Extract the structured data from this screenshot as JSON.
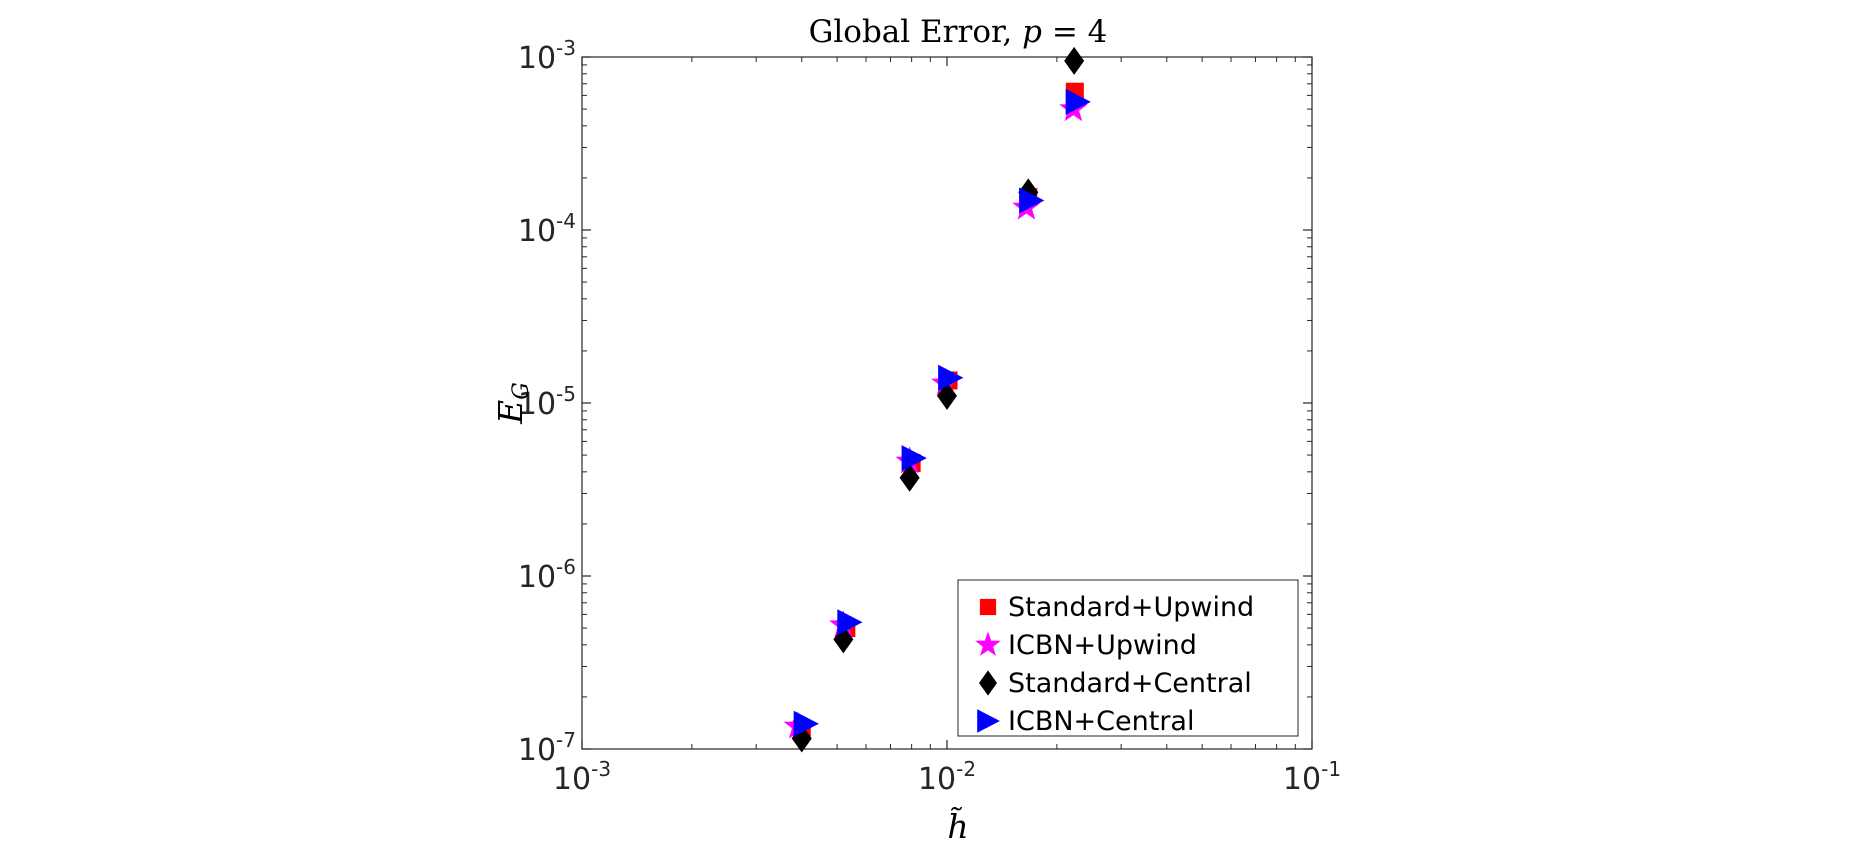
{
  "chart_data": {
    "type": "scatter",
    "title": "Global Error, p = 4",
    "title_parts": {
      "text": "Global Error, ",
      "var": "p",
      "rest": " = 4"
    },
    "xlabel": "h̃",
    "ylabel": {
      "base": "E",
      "sub": "G"
    },
    "x_scale": "log",
    "y_scale": "log",
    "xlim": [
      0.001,
      0.1
    ],
    "ylim": [
      1e-07,
      0.001
    ],
    "x_ticks": [
      {
        "value": 0.001,
        "base": "10",
        "exp": "-3"
      },
      {
        "value": 0.01,
        "base": "10",
        "exp": "-2"
      },
      {
        "value": 0.1,
        "base": "10",
        "exp": "-1"
      }
    ],
    "y_ticks": [
      {
        "value": 1e-07,
        "base": "10",
        "exp": "-7"
      },
      {
        "value": 1e-06,
        "base": "10",
        "exp": "-6"
      },
      {
        "value": 1e-05,
        "base": "10",
        "exp": "-5"
      },
      {
        "value": 0.0001,
        "base": "10",
        "exp": "-4"
      },
      {
        "value": 0.001,
        "base": "10",
        "exp": "-3"
      }
    ],
    "grid": false,
    "legend_position": "bottom-right",
    "series": [
      {
        "name": "Standard+Upwind",
        "marker": "square",
        "color": "#ff0000",
        "points": [
          [
            0.004,
            1.3e-07
          ],
          [
            0.0053,
            5e-07
          ],
          [
            0.008,
            4.5e-06
          ],
          [
            0.0101,
            1.35e-05
          ],
          [
            0.0167,
            0.000155
          ],
          [
            0.0224,
            0.00063
          ]
        ]
      },
      {
        "name": "ICBN+Upwind",
        "marker": "star",
        "color": "#ff00ff",
        "points": [
          [
            0.0039,
            1.35e-07
          ],
          [
            0.0052,
            5.2e-07
          ],
          [
            0.0079,
            4.6e-06
          ],
          [
            0.0099,
            1.3e-05
          ],
          [
            0.0165,
            0.000135
          ],
          [
            0.0222,
            0.0005
          ]
        ]
      },
      {
        "name": "Standard+Central",
        "marker": "diamond",
        "color": "#000000",
        "points": [
          [
            0.004,
            1.15e-07
          ],
          [
            0.0052,
            4.3e-07
          ],
          [
            0.0079,
            3.7e-06
          ],
          [
            0.01,
            1.1e-05
          ],
          [
            0.0167,
            0.000165
          ],
          [
            0.0223,
            0.00095
          ]
        ]
      },
      {
        "name": "ICBN+Central",
        "marker": "triangle-right",
        "color": "#0000ff",
        "points": [
          [
            0.0041,
            1.4e-07
          ],
          [
            0.0054,
            5.4e-07
          ],
          [
            0.0081,
            4.8e-06
          ],
          [
            0.0102,
            1.4e-05
          ],
          [
            0.017,
            0.000148
          ],
          [
            0.0228,
            0.00055
          ]
        ]
      }
    ]
  }
}
